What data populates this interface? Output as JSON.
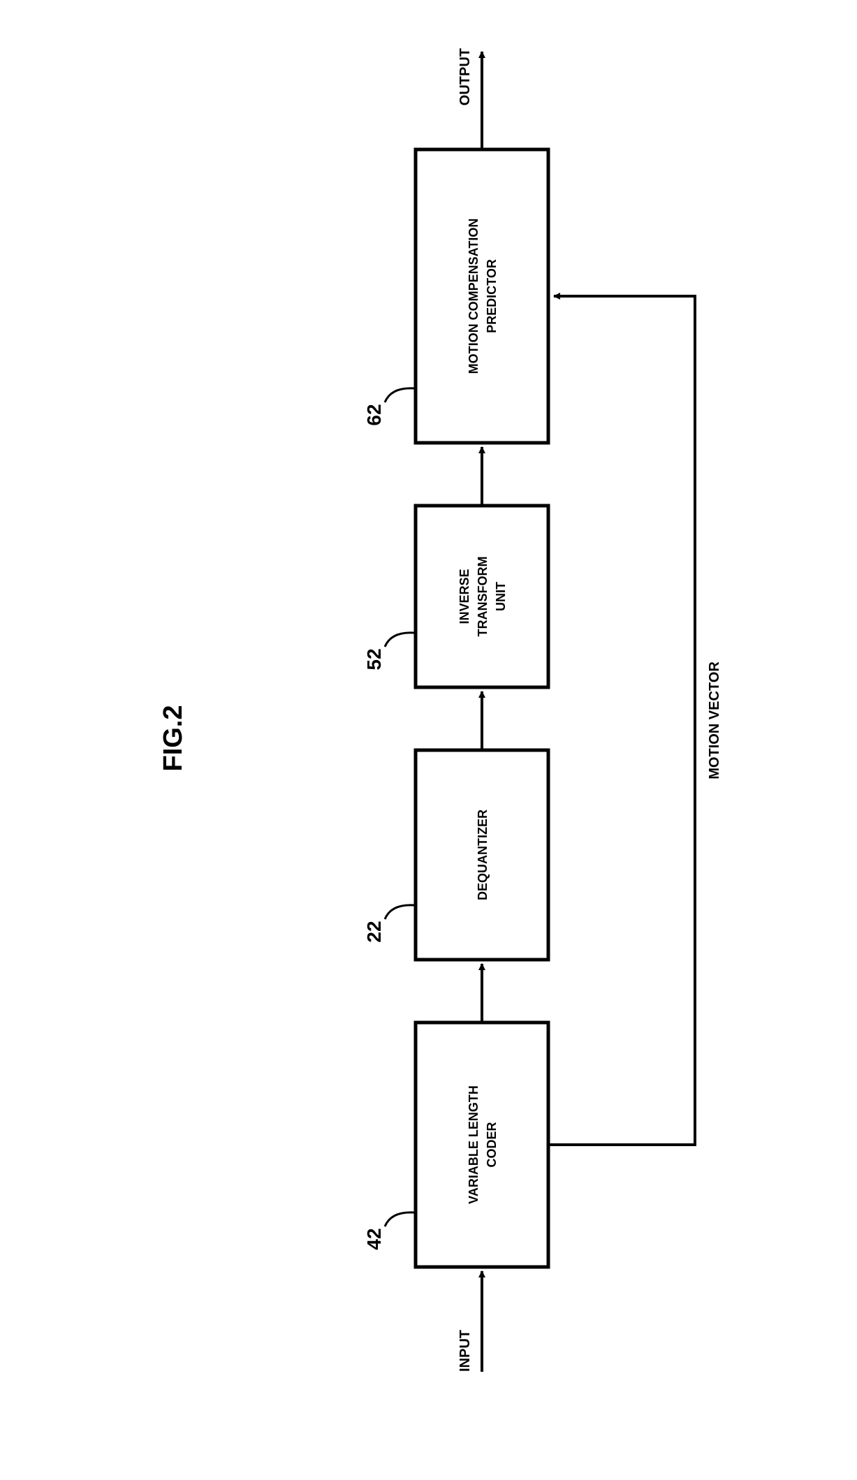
{
  "figure": {
    "title": "FIG.2",
    "title_fontsize": 38,
    "title_fontweight": "bold",
    "type": "flowchart",
    "background_color": "#ffffff",
    "stroke_color": "#000000",
    "text_color": "#000000",
    "input_label": "INPUT",
    "output_label": "OUTPUT",
    "motion_vector_label": "MOTION VECTOR",
    "nodes": [
      {
        "id": "vlc",
        "ref": "42",
        "label_lines": [
          "VARIABLE LENGTH",
          "CODER"
        ]
      },
      {
        "id": "deq",
        "ref": "22",
        "label_lines": [
          "DEQUANTIZER"
        ]
      },
      {
        "id": "inv",
        "ref": "52",
        "label_lines": [
          "INVERSE",
          "TRANSFORM",
          "UNIT"
        ]
      },
      {
        "id": "mcp",
        "ref": "62",
        "label_lines": [
          "MOTION COMPENSATION",
          "PREDICTOR"
        ]
      }
    ],
    "box_stroke_width": 5,
    "arrow_stroke_width": 4,
    "label_fontsize": 18,
    "ref_fontsize": 28,
    "endpoint_fontsize": 20
  }
}
